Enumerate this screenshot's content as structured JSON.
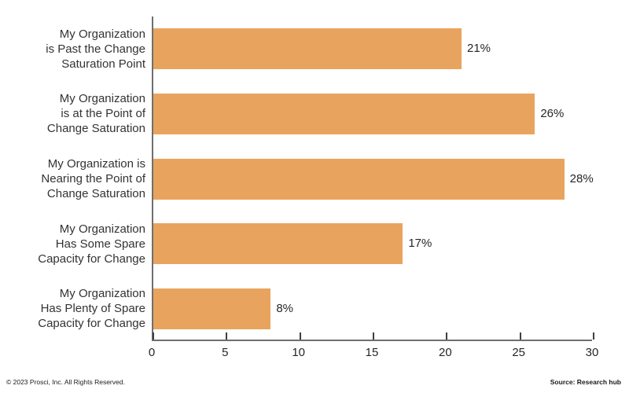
{
  "chart_data": {
    "type": "bar",
    "orientation": "horizontal",
    "title": "",
    "xlabel": "",
    "ylabel": "",
    "grid": false,
    "legend": null,
    "categories": [
      "My Organization\nis Past the Change\nSaturation Point",
      "My Organization\nis at the Point of\nChange Saturation",
      "My Organization is\nNearing the Point of\nChange Saturation",
      "My Organization\nHas Some Spare\nCapacity for Change",
      "My Organization\nHas Plenty of Spare\nCapacity for Change"
    ],
    "values": [
      21,
      26,
      28,
      17,
      8
    ],
    "value_labels": [
      "21%",
      "26%",
      "28%",
      "17%",
      "8%"
    ],
    "xlim": [
      0,
      30
    ],
    "xticks": [
      0,
      5,
      10,
      15,
      20,
      25,
      30
    ],
    "colors": {
      "bar": "#E8A45E",
      "axis": "#6E6E6E",
      "tick": "#3F3F3F",
      "text": "#262626"
    }
  },
  "footer": {
    "copyright": "© 2023 Prosci, Inc. All Rights Reserved.",
    "source": "Source: Research hub"
  }
}
